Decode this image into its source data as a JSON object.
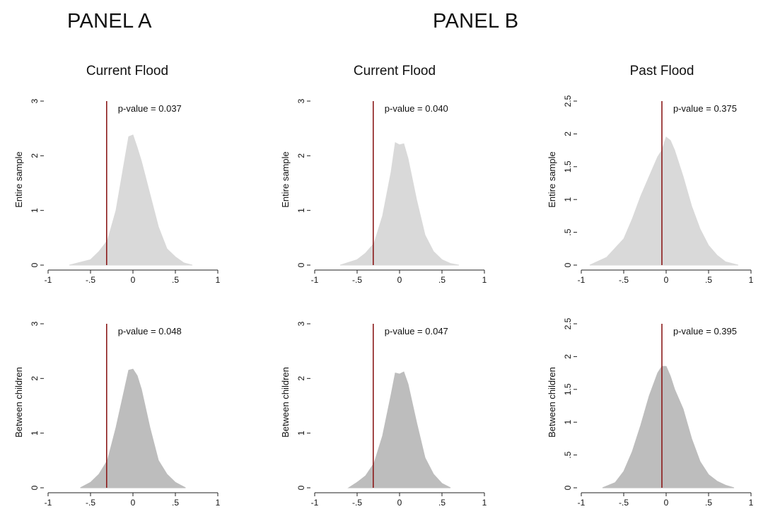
{
  "panels": {
    "a": "PANEL A",
    "b": "PANEL B"
  },
  "columns": [
    "Current Flood",
    "Current Flood",
    "Past Flood"
  ],
  "colors": {
    "entire_fill": "#d9d9d9",
    "between_fill": "#bdbdbd",
    "vline": "#8b1a1a"
  },
  "chart_data": [
    {
      "type": "area",
      "column": "Current Flood",
      "ylabel": "Entire sample",
      "annotation": "p-value = 0.037",
      "xticks": [
        -1,
        -0.5,
        0,
        0.5,
        1
      ],
      "xtick_labels": [
        "-1",
        "-.5",
        "0",
        ".5",
        "1"
      ],
      "yticks": [
        0,
        1,
        2,
        3
      ],
      "ytick_labels": [
        "0",
        "1",
        "2",
        "3"
      ],
      "xlim": [
        -1,
        1
      ],
      "ylim": [
        0,
        3
      ],
      "vline_x": -0.31,
      "density": {
        "x": [
          -0.75,
          -0.5,
          -0.4,
          -0.3,
          -0.2,
          -0.1,
          -0.05,
          0,
          0.05,
          0.1,
          0.15,
          0.2,
          0.3,
          0.4,
          0.5,
          0.6,
          0.7
        ],
        "y": [
          0.0,
          0.1,
          0.25,
          0.45,
          1.0,
          1.9,
          2.35,
          2.38,
          2.15,
          1.9,
          1.6,
          1.3,
          0.7,
          0.3,
          0.15,
          0.04,
          0.0
        ]
      }
    },
    {
      "type": "area",
      "column": "Current Flood",
      "ylabel": "Entire sample",
      "annotation": "p-value = 0.040",
      "xticks": [
        -1,
        -0.5,
        0,
        0.5,
        1
      ],
      "xtick_labels": [
        "-1",
        "-.5",
        "0",
        ".5",
        "1"
      ],
      "yticks": [
        0,
        1,
        2,
        3
      ],
      "ytick_labels": [
        "0",
        "1",
        "2",
        "3"
      ],
      "xlim": [
        -1,
        1
      ],
      "ylim": [
        0,
        3
      ],
      "vline_x": -0.31,
      "density": {
        "x": [
          -0.7,
          -0.5,
          -0.4,
          -0.3,
          -0.2,
          -0.1,
          -0.05,
          0,
          0.05,
          0.1,
          0.2,
          0.3,
          0.4,
          0.5,
          0.6,
          0.7
        ],
        "y": [
          0.0,
          0.1,
          0.22,
          0.4,
          0.9,
          1.7,
          2.24,
          2.2,
          2.22,
          1.95,
          1.2,
          0.55,
          0.25,
          0.1,
          0.03,
          0.0
        ]
      }
    },
    {
      "type": "area",
      "column": "Past Flood",
      "ylabel": "Entire sample",
      "annotation": "p-value = 0.375",
      "xticks": [
        -1,
        -0.5,
        0,
        0.5,
        1
      ],
      "xtick_labels": [
        "-1",
        "-.5",
        "0",
        ".5",
        "1"
      ],
      "yticks": [
        0,
        0.5,
        1,
        1.5,
        2,
        2.5
      ],
      "ytick_labels": [
        "0",
        ".5",
        "1",
        "1.5",
        "2",
        "2.5"
      ],
      "xlim": [
        -1,
        1
      ],
      "ylim": [
        0,
        2.5
      ],
      "vline_x": -0.05,
      "density": {
        "x": [
          -0.9,
          -0.7,
          -0.5,
          -0.4,
          -0.3,
          -0.2,
          -0.1,
          -0.05,
          0,
          0.05,
          0.1,
          0.2,
          0.3,
          0.4,
          0.5,
          0.6,
          0.7,
          0.85
        ],
        "y": [
          0.0,
          0.12,
          0.4,
          0.7,
          1.05,
          1.35,
          1.65,
          1.75,
          1.95,
          1.9,
          1.75,
          1.35,
          0.9,
          0.55,
          0.3,
          0.15,
          0.05,
          0.0
        ]
      }
    },
    {
      "type": "area",
      "column": "Current Flood",
      "ylabel": "Between children",
      "annotation": "p-value = 0.048",
      "xticks": [
        -1,
        -0.5,
        0,
        0.5,
        1
      ],
      "xtick_labels": [
        "-1",
        "-.5",
        "0",
        ".5",
        "1"
      ],
      "yticks": [
        0,
        1,
        2,
        3
      ],
      "ytick_labels": [
        "0",
        "1",
        "2",
        "3"
      ],
      "xlim": [
        -1,
        1
      ],
      "ylim": [
        0,
        3
      ],
      "vline_x": -0.31,
      "density": {
        "x": [
          -0.62,
          -0.5,
          -0.4,
          -0.3,
          -0.2,
          -0.1,
          -0.05,
          0,
          0.05,
          0.1,
          0.2,
          0.3,
          0.4,
          0.5,
          0.62
        ],
        "y": [
          0.0,
          0.1,
          0.25,
          0.5,
          1.1,
          1.8,
          2.15,
          2.17,
          2.05,
          1.8,
          1.1,
          0.5,
          0.25,
          0.1,
          0.0
        ]
      }
    },
    {
      "type": "area",
      "column": "Current Flood",
      "ylabel": "Between children",
      "annotation": "p-value = 0.047",
      "xticks": [
        -1,
        -0.5,
        0,
        0.5,
        1
      ],
      "xtick_labels": [
        "-1",
        "-.5",
        "0",
        ".5",
        "1"
      ],
      "yticks": [
        0,
        1,
        2,
        3
      ],
      "ytick_labels": [
        "0",
        "1",
        "2",
        "3"
      ],
      "xlim": [
        -1,
        1
      ],
      "ylim": [
        0,
        3
      ],
      "vline_x": -0.31,
      "density": {
        "x": [
          -0.6,
          -0.5,
          -0.4,
          -0.3,
          -0.2,
          -0.1,
          -0.05,
          0,
          0.05,
          0.1,
          0.2,
          0.3,
          0.4,
          0.5,
          0.6
        ],
        "y": [
          0.0,
          0.1,
          0.22,
          0.45,
          0.95,
          1.7,
          2.1,
          2.08,
          2.12,
          1.9,
          1.2,
          0.55,
          0.25,
          0.08,
          0.0
        ]
      }
    },
    {
      "type": "area",
      "column": "Past Flood",
      "ylabel": "Between children",
      "annotation": "p-value = 0.395",
      "xticks": [
        -1,
        -0.5,
        0,
        0.5,
        1
      ],
      "xtick_labels": [
        "-1",
        "-.5",
        "0",
        ".5",
        "1"
      ],
      "yticks": [
        0,
        0.5,
        1,
        1.5,
        2,
        2.5
      ],
      "ytick_labels": [
        "0",
        ".5",
        "1",
        "1.5",
        "2",
        "2.5"
      ],
      "xlim": [
        -1,
        1
      ],
      "ylim": [
        0,
        2.5
      ],
      "vline_x": -0.05,
      "density": {
        "x": [
          -0.75,
          -0.6,
          -0.5,
          -0.4,
          -0.3,
          -0.2,
          -0.1,
          -0.05,
          0,
          0.05,
          0.1,
          0.2,
          0.3,
          0.4,
          0.5,
          0.6,
          0.7,
          0.8
        ],
        "y": [
          0.0,
          0.08,
          0.25,
          0.55,
          0.95,
          1.4,
          1.75,
          1.85,
          1.85,
          1.7,
          1.5,
          1.2,
          0.75,
          0.4,
          0.2,
          0.1,
          0.04,
          0.0
        ]
      }
    }
  ]
}
